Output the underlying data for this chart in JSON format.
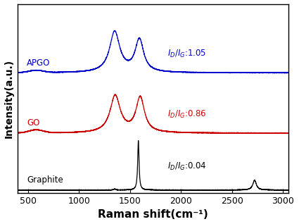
{
  "xlabel": "Raman shift(cm⁻¹)",
  "ylabel": "Intensity(a.u.)",
  "xlim": [
    400,
    3050
  ],
  "xticks": [
    500,
    1000,
    1500,
    2000,
    2500,
    3000
  ],
  "colors": {
    "graphite": "#000000",
    "go": "#cc0000",
    "apgo": "#0000cc"
  },
  "labels": {
    "graphite": "Graphite",
    "go": "GO",
    "apgo": "APGO"
  },
  "offsets": {
    "graphite": 0.0,
    "go": 0.32,
    "apgo": 0.66
  },
  "scales": {
    "graphite": 0.28,
    "go": 0.22,
    "apgo": 0.24
  }
}
